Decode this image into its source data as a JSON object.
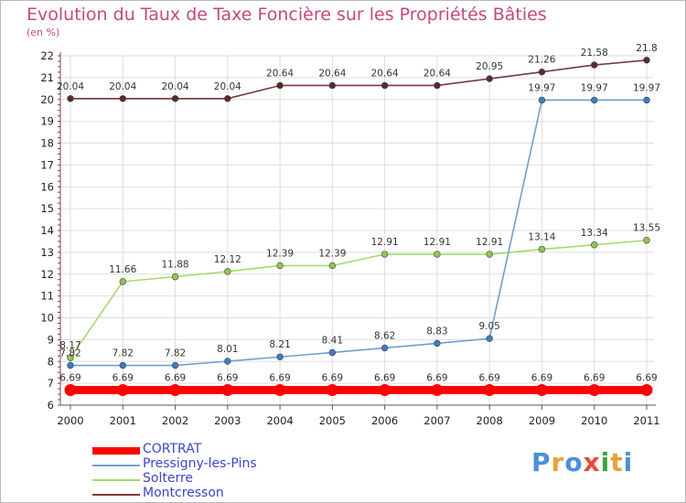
{
  "header": {
    "title": "Evolution du Taux de Taxe Foncière sur les Propriétés Bâties",
    "unit": "(en %)"
  },
  "logo": {
    "text": "Proxiti",
    "colors": [
      "#4a8fd8",
      "#e8a23a",
      "#4a8fd8",
      "#e84a3a",
      "#3aa83a",
      "#e8a23a",
      "#4a8fd8"
    ]
  },
  "chart_data": {
    "type": "line",
    "title": "Evolution du Taux de Taxe Foncière sur les Propriétés Bâties",
    "ylabel": "(en %)",
    "xlabel": "",
    "x": [
      "2000",
      "2001",
      "2002",
      "2003",
      "2004",
      "2005",
      "2006",
      "2007",
      "2008",
      "2009",
      "2010",
      "2011"
    ],
    "ylim": [
      6,
      22
    ],
    "yticks": [
      6,
      7,
      8,
      9,
      10,
      11,
      12,
      13,
      14,
      15,
      16,
      17,
      18,
      19,
      20,
      21,
      22
    ],
    "grid": true,
    "legend_position": "bottom-left",
    "series": [
      {
        "name": "CORTRAT",
        "color": "#ff0000",
        "marker_color": "#ff0000",
        "thick": true,
        "values": [
          6.69,
          6.69,
          6.69,
          6.69,
          6.69,
          6.69,
          6.69,
          6.69,
          6.69,
          6.69,
          6.69,
          6.69
        ],
        "labels": [
          "6.69",
          "6.69",
          "6.69",
          "6.69",
          "6.69",
          "6.69",
          "6.69",
          "6.69",
          "6.69",
          "6.69",
          "6.69",
          "6.69"
        ]
      },
      {
        "name": "Pressigny-les-Pins",
        "color": "#6fa0d0",
        "marker_color": "#3f7cc0",
        "thick": false,
        "values": [
          7.82,
          7.82,
          7.82,
          8.01,
          8.21,
          8.41,
          8.62,
          8.83,
          9.05,
          19.97,
          19.97,
          19.97
        ],
        "labels": [
          "7.82",
          "7.82",
          "7.82",
          "8.01",
          "8.21",
          "8.41",
          "8.62",
          "8.83",
          "9.05",
          "19.97",
          "19.97",
          "19.97"
        ]
      },
      {
        "name": "Solterre",
        "color": "#a6d96a",
        "marker_color": "#8cc850",
        "thick": false,
        "values": [
          8.17,
          11.66,
          11.88,
          12.12,
          12.39,
          12.39,
          12.91,
          12.91,
          12.91,
          13.14,
          13.34,
          13.55
        ],
        "labels": [
          "8.17",
          "11.66",
          "11.88",
          "12.12",
          "12.39",
          "12.39",
          "12.91",
          "12.91",
          "12.91",
          "13.14",
          "13.34",
          "13.55"
        ]
      },
      {
        "name": "Montcresson",
        "color": "#7a3b3b",
        "marker_color": "#5a2a2a",
        "thick": false,
        "values": [
          20.04,
          20.04,
          20.04,
          20.04,
          20.64,
          20.64,
          20.64,
          20.64,
          20.95,
          21.26,
          21.58,
          21.8
        ],
        "labels": [
          "20.04",
          "20.04",
          "20.04",
          "20.04",
          "20.64",
          "20.64",
          "20.64",
          "20.64",
          "20.95",
          "21.26",
          "21.58",
          "21.8"
        ]
      }
    ]
  }
}
